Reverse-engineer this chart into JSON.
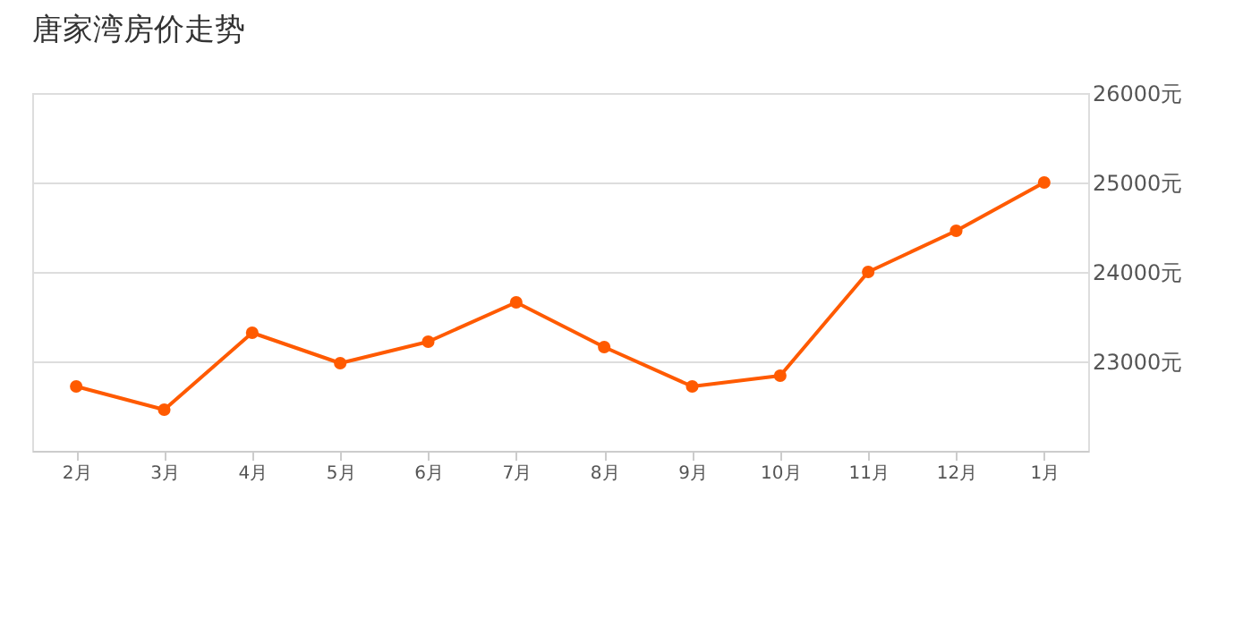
{
  "chart_data": {
    "type": "line",
    "title": "唐家湾房价走势",
    "categories": [
      "2月",
      "3月",
      "4月",
      "5月",
      "6月",
      "7月",
      "8月",
      "9月",
      "10月",
      "11月",
      "12月",
      "1月"
    ],
    "series": [
      {
        "color": "#ff5a00",
        "values": [
          22720,
          22460,
          23320,
          22980,
          23220,
          23660,
          23160,
          22720,
          22840,
          24000,
          24460,
          25000
        ]
      }
    ],
    "ylim": [
      22000,
      26000
    ],
    "yticks": [
      {
        "value": 23000,
        "label": "23000元"
      },
      {
        "value": 24000,
        "label": "24000元"
      },
      {
        "value": 25000,
        "label": "25000元"
      },
      {
        "value": 26000,
        "label": "26000元"
      }
    ],
    "grid": "y",
    "marker": "circle",
    "line_style": "solid",
    "legend": false
  }
}
